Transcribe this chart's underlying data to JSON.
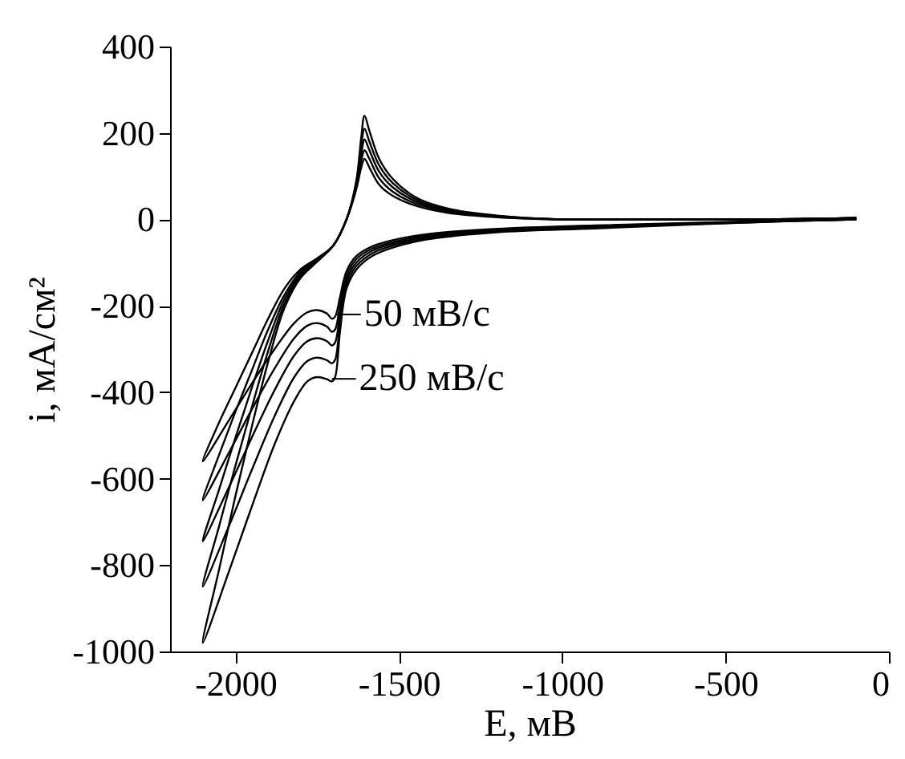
{
  "chart_data": {
    "type": "line",
    "xlabel": "E, мВ",
    "ylabel": "i, мА/см²",
    "xlim": [
      -2200,
      0
    ],
    "xticks": [
      -2000,
      -1500,
      -1000,
      -500,
      0
    ],
    "ylim": [
      -1000,
      400
    ],
    "yticks": [
      -1000,
      -800,
      -600,
      -400,
      -200,
      0,
      200,
      400
    ],
    "grid": false,
    "legend": false,
    "marker": "none",
    "line_style": "solid",
    "annotations": [
      {
        "text": "50 мВ/с",
        "x": -1690,
        "y": -220
      },
      {
        "text": "250 мВ/с",
        "x": -1705,
        "y": -369
      }
    ],
    "series": [
      {
        "color": "#000000",
        "x": [
          -100,
          -300,
          -600,
          -900,
          -1200,
          -1400,
          -1500,
          -1580,
          -1630,
          -1660,
          -1680,
          -1695,
          -1705,
          -1720,
          -1750,
          -1780,
          -1820,
          -1880,
          -1950,
          -2020,
          -2100,
          -2050,
          -2000,
          -1950,
          -1900,
          -1850,
          -1800,
          -1750,
          -1700,
          -1660,
          -1630,
          -1615,
          -1605,
          -1590,
          -1560,
          -1520,
          -1450,
          -1350,
          -1200,
          -1000,
          -700,
          -400,
          -100
        ],
        "values": [
          0,
          -3,
          -8,
          -14,
          -22,
          -33,
          -45,
          -62,
          -85,
          -120,
          -180,
          -225,
          -230,
          -218,
          -210,
          -215,
          -240,
          -300,
          -380,
          -465,
          -560,
          -470,
          -390,
          -310,
          -230,
          -160,
          -115,
          -90,
          -60,
          0,
          70,
          120,
          140,
          120,
          80,
          55,
          32,
          15,
          5,
          0,
          0,
          0,
          3
        ]
      },
      {
        "color": "#000000",
        "x": [
          -100,
          -300,
          -600,
          -900,
          -1200,
          -1400,
          -1500,
          -1580,
          -1630,
          -1660,
          -1680,
          -1695,
          -1705,
          -1720,
          -1750,
          -1780,
          -1820,
          -1880,
          -1950,
          -2020,
          -2100,
          -2050,
          -2000,
          -1950,
          -1900,
          -1850,
          -1800,
          -1750,
          -1700,
          -1660,
          -1630,
          -1615,
          -1605,
          -1590,
          -1560,
          -1520,
          -1450,
          -1350,
          -1200,
          -1000,
          -700,
          -400,
          -100
        ],
        "values": [
          0,
          -3,
          -9,
          -15,
          -24,
          -36,
          -49,
          -67,
          -92,
          -130,
          -200,
          -255,
          -260,
          -248,
          -240,
          -246,
          -275,
          -345,
          -440,
          -540,
          -650,
          -545,
          -445,
          -350,
          -255,
          -175,
          -120,
          -92,
          -60,
          0,
          75,
          135,
          160,
          140,
          95,
          65,
          37,
          18,
          6,
          0,
          0,
          0,
          3
        ]
      },
      {
        "color": "#000000",
        "x": [
          -100,
          -300,
          -600,
          -900,
          -1200,
          -1400,
          -1500,
          -1580,
          -1630,
          -1660,
          -1680,
          -1695,
          -1705,
          -1720,
          -1750,
          -1780,
          -1820,
          -1880,
          -1950,
          -2020,
          -2100,
          -2050,
          -2000,
          -1950,
          -1900,
          -1850,
          -1800,
          -1750,
          -1700,
          -1660,
          -1630,
          -1615,
          -1605,
          -1590,
          -1560,
          -1520,
          -1450,
          -1350,
          -1200,
          -1000,
          -700,
          -400,
          -100
        ],
        "values": [
          0,
          -3,
          -10,
          -17,
          -26,
          -39,
          -53,
          -72,
          -100,
          -140,
          -220,
          -285,
          -292,
          -282,
          -275,
          -282,
          -315,
          -395,
          -505,
          -620,
          -745,
          -625,
          -505,
          -390,
          -280,
          -185,
          -125,
          -94,
          -60,
          0,
          80,
          150,
          185,
          160,
          110,
          75,
          42,
          20,
          7,
          0,
          0,
          0,
          3
        ]
      },
      {
        "color": "#000000",
        "x": [
          -100,
          -300,
          -600,
          -900,
          -1200,
          -1400,
          -1500,
          -1580,
          -1630,
          -1660,
          -1680,
          -1695,
          -1705,
          -1720,
          -1750,
          -1780,
          -1820,
          -1880,
          -1950,
          -2020,
          -2100,
          -2050,
          -2000,
          -1950,
          -1900,
          -1850,
          -1800,
          -1750,
          -1700,
          -1660,
          -1630,
          -1615,
          -1605,
          -1590,
          -1560,
          -1520,
          -1450,
          -1350,
          -1200,
          -1000,
          -700,
          -400,
          -100
        ],
        "values": [
          0,
          -4,
          -11,
          -19,
          -28,
          -42,
          -57,
          -78,
          -108,
          -150,
          -240,
          -325,
          -333,
          -326,
          -320,
          -328,
          -365,
          -455,
          -580,
          -710,
          -850,
          -710,
          -570,
          -435,
          -305,
          -195,
          -130,
          -96,
          -60,
          0,
          85,
          170,
          210,
          180,
          125,
          85,
          47,
          22,
          8,
          0,
          0,
          0,
          3
        ]
      },
      {
        "color": "#000000",
        "x": [
          -100,
          -300,
          -600,
          -900,
          -1200,
          -1400,
          -1500,
          -1580,
          -1630,
          -1660,
          -1680,
          -1695,
          -1705,
          -1720,
          -1750,
          -1780,
          -1820,
          -1880,
          -1950,
          -2020,
          -2100,
          -2050,
          -2000,
          -1950,
          -1900,
          -1850,
          -1800,
          -1750,
          -1700,
          -1660,
          -1630,
          -1615,
          -1605,
          -1590,
          -1560,
          -1520,
          -1450,
          -1350,
          -1200,
          -1000,
          -700,
          -400,
          -100
        ],
        "values": [
          0,
          -4,
          -12,
          -21,
          -30,
          -45,
          -61,
          -84,
          -116,
          -160,
          -260,
          -365,
          -375,
          -370,
          -365,
          -375,
          -420,
          -520,
          -665,
          -815,
          -980,
          -810,
          -640,
          -480,
          -330,
          -205,
          -135,
          -98,
          -60,
          0,
          90,
          190,
          240,
          205,
          140,
          95,
          52,
          25,
          9,
          0,
          0,
          0,
          3
        ]
      }
    ]
  }
}
